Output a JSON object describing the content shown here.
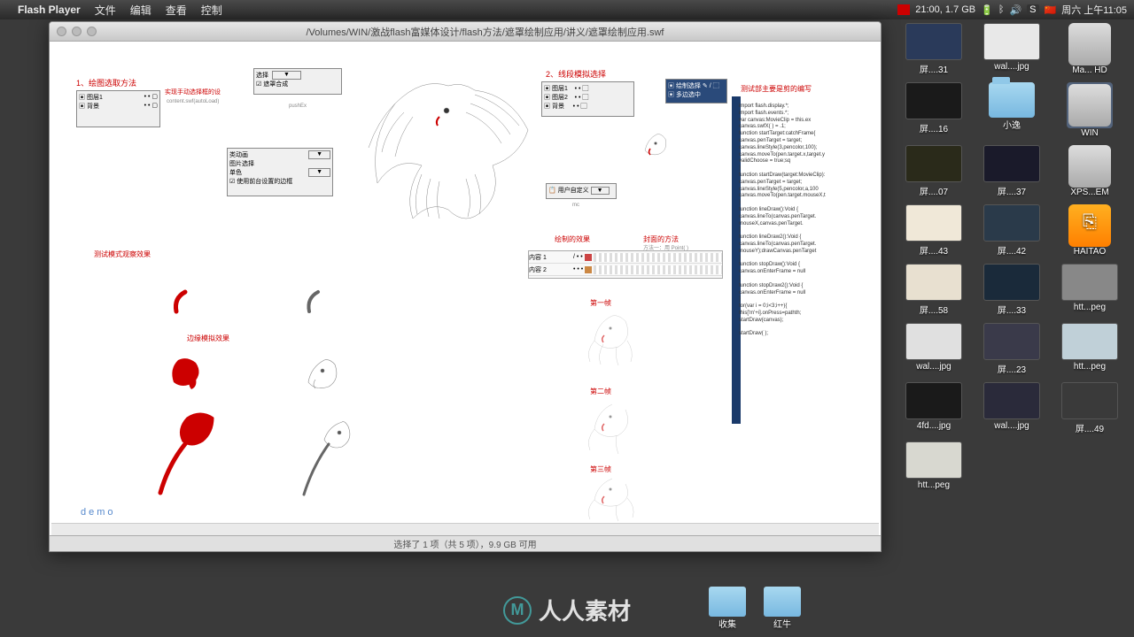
{
  "menubar": {
    "app_name": "Flash Player",
    "menus": [
      "文件",
      "编辑",
      "查看",
      "控制"
    ],
    "time_status": "21:00, 1.7 GB",
    "clock": "周六 上午11:05"
  },
  "window": {
    "title_path": "/Volumes/WIN/激战flash富媒体设计/flash方法/遮罩绘制应用/讲义/遮罩绘制应用.swf"
  },
  "annotations": {
    "a1": "1、绘图选取方法",
    "a1_sub": "实现手动选择框的设",
    "a2": "2、线段模拟选择",
    "a3": "测试模式观察效果",
    "a4": "边缘模拟效果",
    "a5": "测试部主要是剪的编写",
    "panel1_label": "content.swf(autoLoad)",
    "panel2_label": "遮罩合成",
    "panel2_sub": "pushEx",
    "panel3_a": "类动画",
    "panel3_b": "图片选择",
    "panel3_c": "单色",
    "panel3_d": "使用前台设置的边框",
    "panel4": "用户自定义",
    "sel1": "选择",
    "timeline_h1": "绘制的效果",
    "timeline_h2": "封面的方法",
    "timeline_l1": "内容 1",
    "timeline_l2": "内容 2",
    "timeline_sub": "方法一：用 Point( )",
    "frame1": "第一帧",
    "frame2": "第二帧",
    "frame3": "第三帧",
    "demo": "demo"
  },
  "code": {
    "lines": [
      "import flash.display.*;",
      "import flash.events.*;",
      "",
      "var canvas:MovieClip = this.ex",
      "    canvas.swfX( ) = .1;",
      "    function startTarget:catchFrame{",
      "",
      "    canvas.penTarget = target;",
      "    canvas.lineStyle(3,pencolor,100);",
      "    canvas.moveTo(pen.target.x,target.y",
      "    validChoose = true;sq",
      "}",
      "function startDraw(target:MovieClip):",
      "",
      "    canvas.penTarget = target;",
      "    canvas.lineStyle(5,pencolor,a,100",
      "    canvas.moveTo(pen.target.mouseX,t",
      "}",
      "function lineDraw():Void {",
      "    canvas.lineTo(canvas.penTarget.",
      "        mouseX,canvas.penTarget.",
      "}",
      "function lineDraw2():Void {",
      "    canvas.lineTo(canvas.penTarget.",
      "        mouseY);drawCanvas.penTarget",
      "}",
      "function stopDraw():Void {",
      "    canvas.onEnterFrame = null",
      "}",
      "function stopDraw2():Void {",
      "    canvas.onEnterFrame = null",
      "}",
      "for(var i = 0;i<3;i++){",
      "    this['m'+i].onPress=pathth;",
      "    startDraw(canvas);",
      "}",
      "startDraw( );"
    ]
  },
  "statusbar": {
    "text": "选择了 1 项（共 5 项），9.9 GB 可用"
  },
  "desktop": {
    "icons": [
      {
        "label": "屏....31",
        "type": "img",
        "bg": "#2a3a5a"
      },
      {
        "label": "wal....jpg",
        "type": "img",
        "bg": "#e8e8e8"
      },
      {
        "label": "Ma... HD",
        "type": "disk"
      },
      {
        "label": "屏....16",
        "type": "img",
        "bg": "#1a1a1a"
      },
      {
        "label": "小逸",
        "type": "folder"
      },
      {
        "label": "WIN",
        "type": "disk",
        "selected": true
      },
      {
        "label": "屏....07",
        "type": "img",
        "bg": "#2a2a1a"
      },
      {
        "label": "屏....37",
        "type": "img",
        "bg": "#1a1a2a"
      },
      {
        "label": "XPS...EM",
        "type": "disk"
      },
      {
        "label": "屏....43",
        "type": "img",
        "bg": "#f0e8d8"
      },
      {
        "label": "屏....42",
        "type": "img",
        "bg": "#2a3a4a"
      },
      {
        "label": "HAITAO",
        "type": "usb"
      },
      {
        "label": "屏....58",
        "type": "img",
        "bg": "#e8e0d0"
      },
      {
        "label": "屏....33",
        "type": "img",
        "bg": "#1a2a3a"
      },
      {
        "label": "htt...peg",
        "type": "img",
        "bg": "#888"
      },
      {
        "label": "wal....jpg",
        "type": "img",
        "bg": "#e0e0e0"
      },
      {
        "label": "屏....23",
        "type": "img",
        "bg": "#3a3a4a"
      },
      {
        "label": "htt...peg",
        "type": "img",
        "bg": "#c0d0d8"
      },
      {
        "label": "4fd....jpg",
        "type": "img",
        "bg": "#1a1a1a"
      },
      {
        "label": "wal....jpg",
        "type": "img",
        "bg": "#2a2a3a"
      },
      {
        "label": "屏....49",
        "type": "img",
        "bg": "#3a3a3a"
      },
      {
        "label": "htt...peg",
        "type": "img",
        "bg": "#d8d8d0"
      }
    ],
    "dock": [
      "收集",
      "红牛"
    ]
  },
  "watermark": {
    "text": "人人素材",
    "logo": "M"
  },
  "colors": {
    "red": "#cc0000",
    "blue_link": "#5588cc",
    "code_bar": "#1a3a6a",
    "bg": "#3a3a3a"
  }
}
